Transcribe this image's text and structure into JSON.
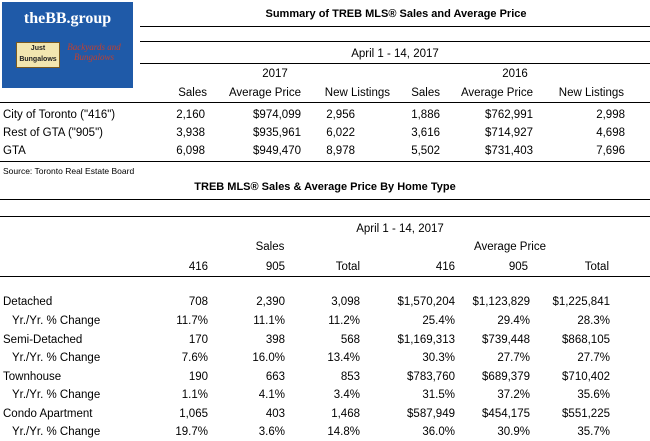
{
  "logo": {
    "title": "theBB.group",
    "badge": "Just Bungalows",
    "script": "Backyards and Bungalows"
  },
  "summary": {
    "title": "Summary of TREB MLS® Sales and Average Price",
    "period": "April 1 - 14, 2017",
    "year_a": "2017",
    "year_b": "2016",
    "headers": [
      "Sales",
      "Average Price",
      "New Listings",
      "Sales",
      "Average Price",
      "New Listings"
    ],
    "rows": [
      {
        "label": "City of Toronto (\"416\")",
        "values": [
          "2,160",
          "$974,099",
          "2,956",
          "1,886",
          "$762,991",
          "2,998"
        ]
      },
      {
        "label": "Rest of GTA (\"905\")",
        "values": [
          "3,938",
          "$935,961",
          "6,022",
          "3,616",
          "$714,927",
          "4,698"
        ]
      },
      {
        "label": "GTA",
        "values": [
          "6,098",
          "$949,470",
          "8,978",
          "5,502",
          "$731,403",
          "7,696"
        ]
      }
    ],
    "source": "Source: Toronto Real Estate Board"
  },
  "bytype": {
    "title": "TREB MLS® Sales & Average Price  By Home Type",
    "period": "April 1 - 14, 2017",
    "sales_label": "Sales",
    "avg_label": "Average Price",
    "headers": [
      "416",
      "905",
      "Total",
      "416",
      "905",
      "Total"
    ],
    "rows": [
      {
        "label": "Detached",
        "values": [
          "708",
          "2,390",
          "3,098",
          "$1,570,204",
          "$1,123,829",
          "$1,225,841"
        ]
      },
      {
        "label": "Yr./Yr. % Change",
        "values": [
          "11.7%",
          "11.1%",
          "11.2%",
          "25.4%",
          "29.4%",
          "28.3%"
        ]
      },
      {
        "label": "Semi-Detached",
        "values": [
          "170",
          "398",
          "568",
          "$1,169,313",
          "$739,448",
          "$868,105"
        ]
      },
      {
        "label": "Yr./Yr. % Change",
        "values": [
          "7.6%",
          "16.0%",
          "13.4%",
          "30.3%",
          "27.7%",
          "27.7%"
        ]
      },
      {
        "label": "Townhouse",
        "values": [
          "190",
          "663",
          "853",
          "$783,760",
          "$689,379",
          "$710,402"
        ]
      },
      {
        "label": "Yr./Yr. % Change",
        "values": [
          "1.1%",
          "4.1%",
          "3.4%",
          "31.5%",
          "37.2%",
          "35.6%"
        ]
      },
      {
        "label": "Condo Apartment",
        "values": [
          "1,065",
          "403",
          "1,468",
          "$587,949",
          "$454,175",
          "$551,225"
        ]
      },
      {
        "label": "Yr./Yr. % Change",
        "values": [
          "19.7%",
          "3.6%",
          "14.8%",
          "36.0%",
          "30.9%",
          "35.7%"
        ]
      }
    ]
  }
}
